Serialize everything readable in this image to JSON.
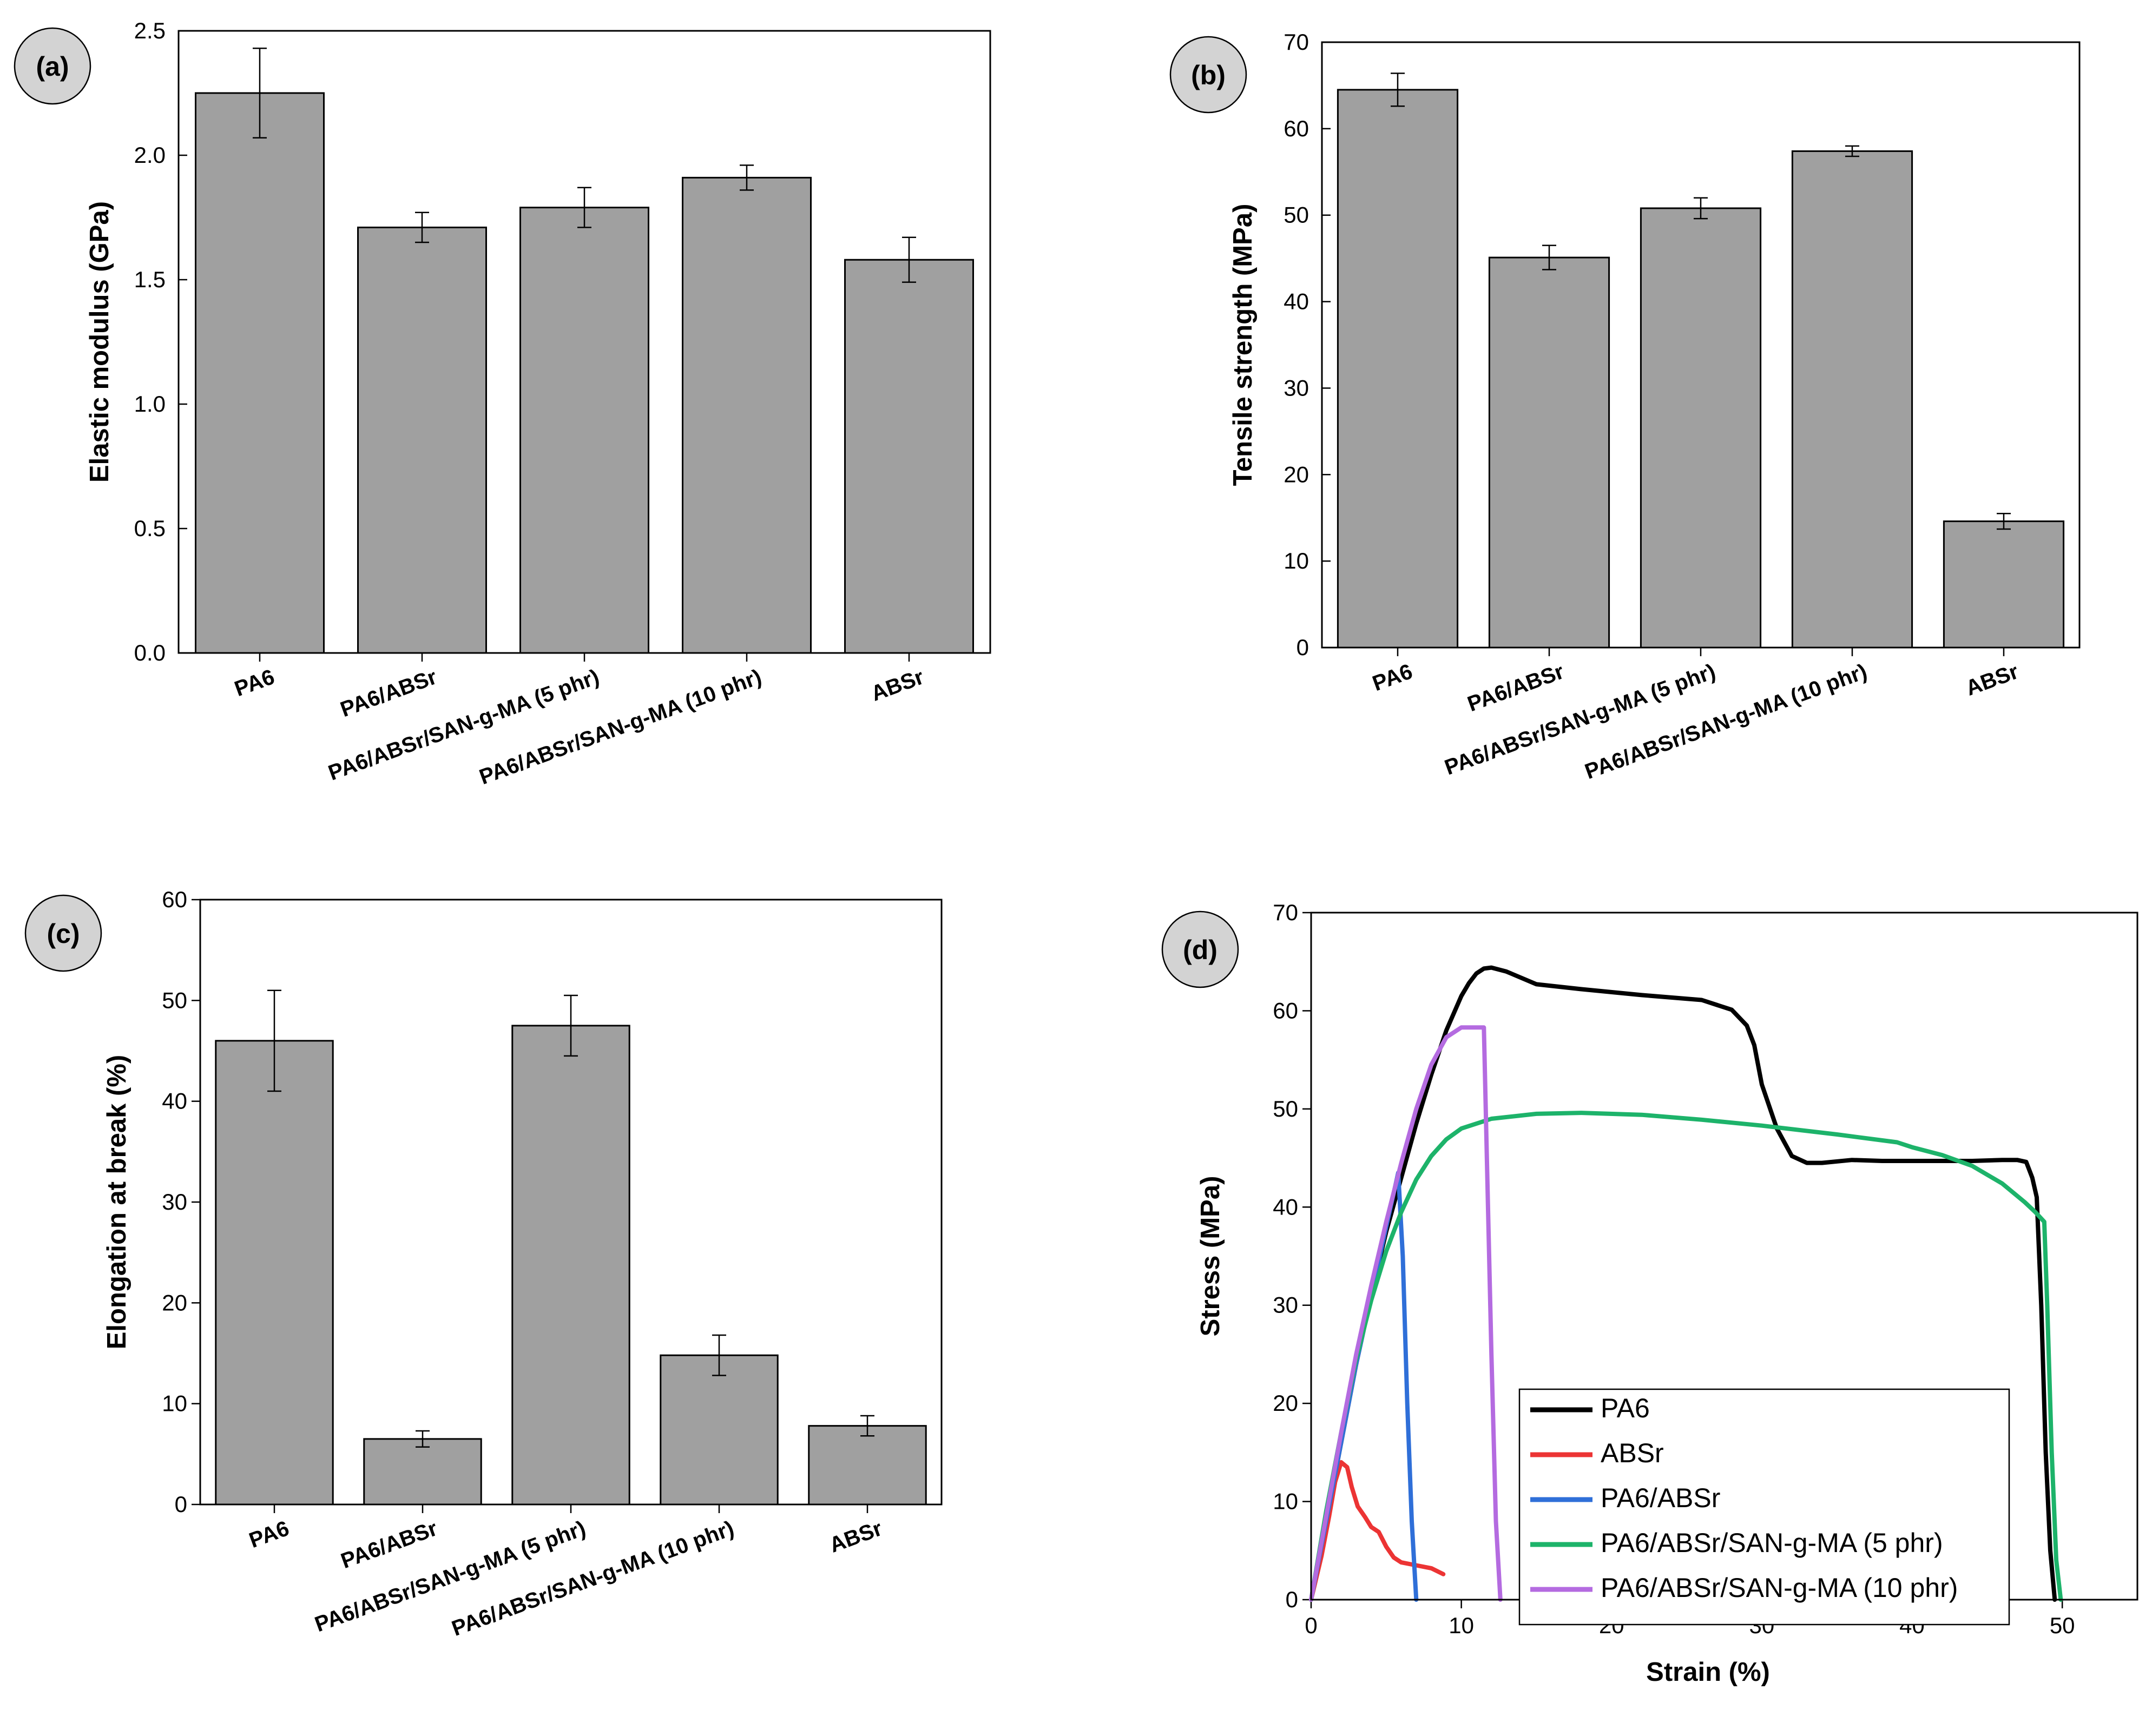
{
  "figure": {
    "colors": {
      "bar_fill": "#a0a0a0",
      "bar_stroke": "#000000",
      "badge_fill": "#d3d3d3",
      "PA6": "#000000",
      "ABSr": "#ec3434",
      "PA6/ABSr": "#2f6fd8",
      "PA6/ABSr/SAN-g-MA (5 phr)": "#1db36a",
      "PA6/ABSr/SAN-g-MA (10 phr)": "#b46be0"
    }
  },
  "chart_data": [
    {
      "id": "a",
      "panel_label": "(a)",
      "type": "bar",
      "ylabel": "Elastic modulus (GPa)",
      "xlabel": "",
      "ylim": [
        0,
        2.5
      ],
      "yticks": [
        0.0,
        0.5,
        1.0,
        1.5,
        2.0,
        2.5
      ],
      "ytick_labels": [
        "0.0",
        "0.5",
        "1.0",
        "1.5",
        "2.0",
        "2.5"
      ],
      "categories": [
        "PA6",
        "PA6/ABSr",
        "PA6/ABSr/SAN-g-MA (5 phr)",
        "PA6/ABSr/SAN-g-MA (10 phr)",
        "ABSr"
      ],
      "values": [
        2.25,
        1.71,
        1.79,
        1.91,
        1.58
      ],
      "errors": [
        0.18,
        0.06,
        0.08,
        0.05,
        0.09
      ]
    },
    {
      "id": "b",
      "panel_label": "(b)",
      "type": "bar",
      "ylabel": "Tensile strength (MPa)",
      "xlabel": "",
      "ylim": [
        0,
        70
      ],
      "yticks": [
        0,
        10,
        20,
        30,
        40,
        50,
        60,
        70
      ],
      "ytick_labels": [
        "0",
        "10",
        "20",
        "30",
        "40",
        "50",
        "60",
        "70"
      ],
      "categories": [
        "PA6",
        "PA6/ABSr",
        "PA6/ABSr/SAN-g-MA (5 phr)",
        "PA6/ABSr/SAN-g-MA (10 phr)",
        "ABSr"
      ],
      "values": [
        64.5,
        45.1,
        50.8,
        57.4,
        14.6
      ],
      "errors": [
        1.9,
        1.4,
        1.2,
        0.6,
        0.9
      ]
    },
    {
      "id": "c",
      "panel_label": "(c)",
      "type": "bar",
      "ylabel": "Elongation at break (%)",
      "xlabel": "",
      "ylim": [
        0,
        60
      ],
      "yticks": [
        0,
        10,
        20,
        30,
        40,
        50,
        60
      ],
      "ytick_labels": [
        "0",
        "10",
        "20",
        "30",
        "40",
        "50",
        "60"
      ],
      "categories": [
        "PA6",
        "PA6/ABSr",
        "PA6/ABSr/SAN-g-MA (5 phr)",
        "PA6/ABSr/SAN-g-MA (10 phr)",
        "ABSr"
      ],
      "values": [
        46.0,
        6.5,
        47.5,
        14.8,
        7.8
      ],
      "errors": [
        5.0,
        0.8,
        3.0,
        2.0,
        1.0
      ]
    },
    {
      "id": "d",
      "panel_label": "(d)",
      "type": "line",
      "xlabel": "Strain (%)",
      "ylabel": "Stress (MPa)",
      "xlim": [
        0,
        55
      ],
      "ylim": [
        0,
        70
      ],
      "xticks": [
        0,
        10,
        20,
        30,
        40,
        50
      ],
      "xtick_labels": [
        "0",
        "10",
        "20",
        "30",
        "40",
        "50"
      ],
      "yticks": [
        0,
        10,
        20,
        30,
        40,
        50,
        60,
        70
      ],
      "ytick_labels": [
        "0",
        "10",
        "20",
        "30",
        "40",
        "50",
        "60",
        "70"
      ],
      "legend_location": "bottom-right",
      "series": [
        {
          "name": "PA6",
          "x": [
            0,
            1,
            2,
            3,
            4,
            5,
            6,
            7,
            8,
            9,
            10,
            10.5,
            11,
            11.5,
            12,
            13,
            15,
            18,
            22,
            26,
            28,
            29,
            29.5,
            30,
            31,
            32,
            33,
            34,
            36,
            38,
            40,
            44,
            46,
            47,
            47.6,
            48,
            48.3,
            48.6,
            48.9,
            49.2,
            49.5
          ],
          "y": [
            0,
            8,
            16,
            24,
            31,
            37.5,
            43,
            48.5,
            53.5,
            58,
            61.5,
            62.8,
            63.8,
            64.3,
            64.4,
            64,
            62.7,
            62.2,
            61.6,
            61.1,
            60.1,
            58.5,
            56.5,
            52.5,
            48,
            45.2,
            44.5,
            44.5,
            44.8,
            44.7,
            44.7,
            44.7,
            44.8,
            44.8,
            44.6,
            43,
            41,
            30,
            15,
            5,
            0
          ]
        },
        {
          "name": "ABSr",
          "x": [
            0,
            0.7,
            1.2,
            1.6,
            2.0,
            2.4,
            2.7,
            3.1,
            3.6,
            4.0,
            4.5,
            5.0,
            5.5,
            6.0,
            7.0,
            8.0,
            8.8
          ],
          "y": [
            0,
            4.5,
            8.5,
            12.0,
            14.0,
            13.5,
            11.5,
            9.5,
            8.4,
            7.4,
            6.9,
            5.4,
            4.3,
            3.8,
            3.5,
            3.2,
            2.6
          ]
        },
        {
          "name": "PA6/ABSr",
          "x": [
            0,
            1,
            2,
            3,
            4,
            5,
            5.8,
            6.1,
            6.4,
            6.7,
            7.0
          ],
          "y": [
            0,
            8,
            16,
            24,
            31,
            38,
            43.5,
            35,
            20,
            8,
            0
          ]
        },
        {
          "name": "PA6/ABSr/SAN-g-MA (5 phr)",
          "x": [
            0,
            1,
            2,
            3,
            4,
            5,
            6,
            7,
            8,
            9,
            10,
            12,
            15,
            18,
            22,
            26,
            30,
            35,
            39,
            40,
            42,
            44,
            46,
            47.5,
            48.2,
            48.8,
            49.0,
            49.3,
            49.6,
            49.9
          ],
          "y": [
            0,
            9,
            17,
            24.5,
            30.5,
            35.5,
            39.5,
            42.8,
            45.2,
            46.9,
            48.0,
            49.0,
            49.5,
            49.6,
            49.4,
            48.9,
            48.3,
            47.4,
            46.6,
            46.1,
            45.3,
            44.2,
            42.4,
            40.5,
            39.5,
            38.5,
            30,
            15,
            4,
            0
          ]
        },
        {
          "name": "PA6/ABSr/SAN-g-MA (10 phr)",
          "x": [
            0,
            1,
            2,
            3,
            4,
            5,
            6,
            7,
            8,
            9,
            10,
            10.5,
            11,
            11.5,
            11.7,
            12.0,
            12.3,
            12.6
          ],
          "y": [
            0,
            8.5,
            17,
            25,
            32,
            38.5,
            44.5,
            50,
            54.5,
            57.3,
            58.3,
            58.3,
            58.3,
            58.3,
            45,
            25,
            8,
            0
          ]
        }
      ]
    }
  ]
}
